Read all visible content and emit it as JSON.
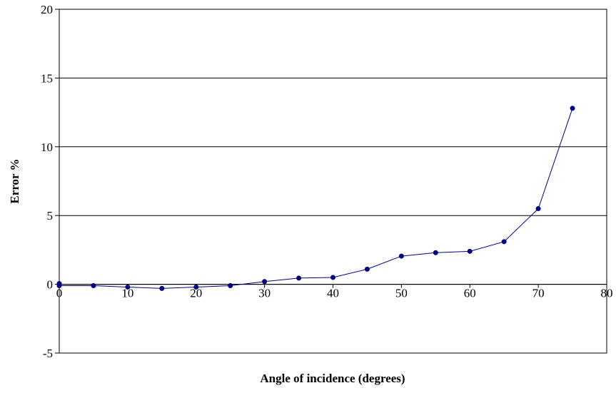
{
  "chart_data": {
    "type": "line",
    "title": "",
    "xlabel": "Angle of incidence (degrees)",
    "ylabel": "Error %",
    "xlim": [
      0,
      80
    ],
    "ylim": [
      -5,
      20
    ],
    "x_ticks": [
      0,
      10,
      20,
      30,
      40,
      50,
      60,
      70,
      80
    ],
    "y_ticks": [
      -5,
      0,
      5,
      10,
      15,
      20
    ],
    "grid": "horizontal",
    "legend": "none",
    "series": [
      {
        "color": "#000080",
        "marker": "circle",
        "x": [
          0,
          0,
          5,
          10,
          15,
          20,
          25,
          30,
          35,
          40,
          45,
          50,
          55,
          60,
          65,
          70,
          75
        ],
        "y": [
          0.05,
          -0.1,
          -0.1,
          -0.2,
          -0.3,
          -0.2,
          -0.1,
          0.2,
          0.45,
          0.5,
          1.1,
          2.05,
          2.3,
          2.4,
          3.1,
          5.5,
          12.8
        ]
      }
    ]
  }
}
